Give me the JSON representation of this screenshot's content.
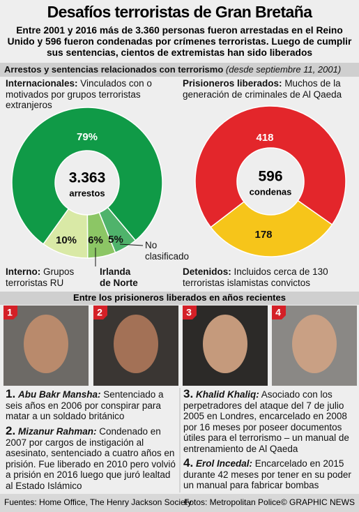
{
  "header": {
    "title": "Desafíos terroristas de Gran Bretaña",
    "subtitle": "Entre 2001 y 2016 más de 3.360 personas fueron arrestadas en el Reino Unido y 596 fueron condenadas por crímenes terroristas. Luego de cumplir sus sentencias, cientos de extremistas han sido liberados"
  },
  "section": {
    "title": "Arrestos y sentencias relacionados con terrorismo",
    "note": "(desde septiembre 11, 2001)"
  },
  "chart_data": [
    {
      "type": "pie",
      "center_value": "3.363",
      "center_label": "arrestos",
      "categories": [
        "Internacionales:",
        "Interno:",
        "Irlanda de Norte",
        "No clasificado"
      ],
      "descriptions": [
        "Vinculados con o motivados por grupos terroristas extranjeros",
        "Grupos terroristas RU",
        null,
        null
      ],
      "values": [
        79,
        10,
        6,
        5
      ],
      "value_labels": [
        "79%",
        "10%",
        "6%",
        "5%"
      ],
      "colors": [
        "#109a47",
        "#d9e9a6",
        "#8cc665",
        "#4fb36b"
      ]
    },
    {
      "type": "pie",
      "center_value": "596",
      "center_label": "condenas",
      "categories": [
        "Prisioneros liberados:",
        "Detenidos:"
      ],
      "descriptions": [
        "Muchos de la generación de criminales de Al Qaeda",
        "Incluidos cerca de 130 terroristas islamistas convictos"
      ],
      "values": [
        418,
        178
      ],
      "colors": [
        "#e3262b",
        "#f6c51a"
      ]
    }
  ],
  "people_section": {
    "title": "Entre los prisioneros liberados en años recientes"
  },
  "people": [
    {
      "badge": "1",
      "number": "1.",
      "name": "Abu Bakr Mansha:",
      "text": "Sentenciado a seis años en 2006 por conspirar para matar a un soldado británico"
    },
    {
      "badge": "2",
      "number": "2.",
      "name": "Mizanur Rahman:",
      "text": "Condenado en 2007 por cargos de instigación al asesinato, sentenciado a cuatro años en prisión. Fue liberado en 2010 pero volvió a prisión en 2016 luego que juró lealtad al Estado Islámico"
    },
    {
      "badge": "3",
      "number": "3.",
      "name": "Khalid Khaliq:",
      "text": "Asociado con los perpetradores del ataque del 7 de julio 2005 en Londres, encarcelado en 2008 por 16 meses por poseer documentos útiles para el terrorismo – un manual de entrenamiento de Al Qaeda"
    },
    {
      "badge": "4",
      "number": "4.",
      "name": "Erol Incedal:",
      "text": "Encarcelado en 2015 durante 42 meses por tener en su poder un manual para fabricar bombas"
    }
  ],
  "footer": {
    "sources": "Fuentes: Home Office, The Henry Jackson Society",
    "photos": "Fotos: Metropolitan Police",
    "credit": "© GRAPHIC NEWS"
  }
}
